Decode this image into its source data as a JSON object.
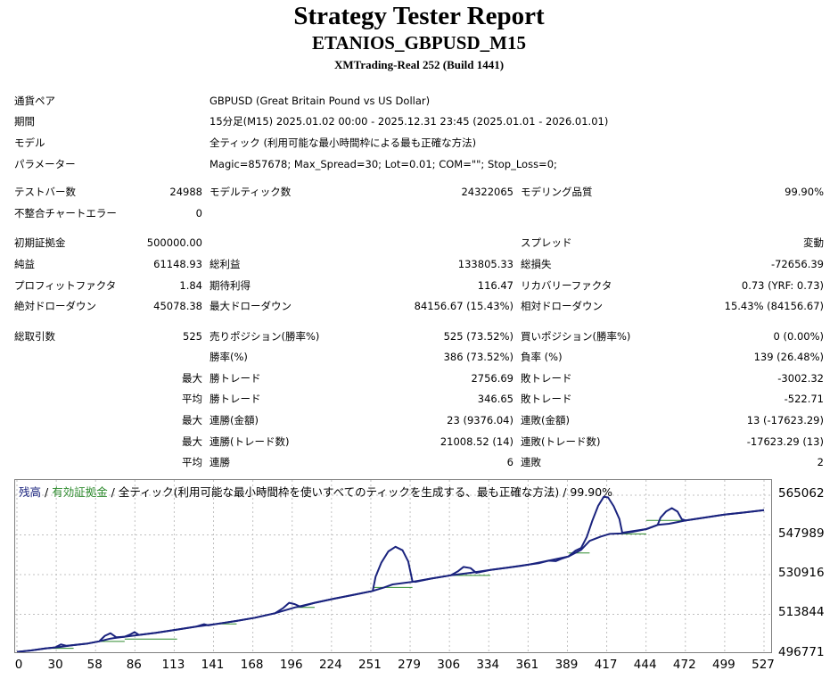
{
  "header": {
    "title": "Strategy Tester Report",
    "subtitle": "ETANIOS_GBPUSD_M15",
    "server": "XMTrading-Real 252 (Build 1441)"
  },
  "info": {
    "symbol_label": "通貨ペア",
    "symbol_value": "GBPUSD (Great Britain Pound vs US Dollar)",
    "period_label": "期間",
    "period_value": "15分足(M15) 2025.01.02 00:00 - 2025.12.31 23:45 (2025.01.01 - 2026.01.01)",
    "model_label": "モデル",
    "model_value": "全ティック (利用可能な最小時間枠による最も正確な方法)",
    "params_label": "パラメーター",
    "params_value": "Magic=857678; Max_Spread=30; Lot=0.01; COM=\"\"; Stop_Loss=0;"
  },
  "stats": {
    "bars_label": "テストバー数",
    "bars_value": "24988",
    "ticks_label": "モデルティック数",
    "ticks_value": "24322065",
    "quality_label": "モデリング品質",
    "quality_value": "99.90%",
    "mismatch_label": "不整合チャートエラー",
    "mismatch_value": "0",
    "deposit_label": "初期証拠金",
    "deposit_value": "500000.00",
    "spread_label": "スプレッド",
    "spread_value": "変動",
    "net_label": "純益",
    "net_value": "61148.93",
    "gross_profit_label": "総利益",
    "gross_profit_value": "133805.33",
    "gross_loss_label": "総損失",
    "gross_loss_value": "-72656.39",
    "pf_label": "プロフィットファクタ",
    "pf_value": "1.84",
    "payoff_label": "期待利得",
    "payoff_value": "116.47",
    "recovery_label": "リカバリーファクタ",
    "recovery_value": "0.73 (YRF: 0.73)",
    "abs_dd_label": "絶対ドローダウン",
    "abs_dd_value": "45078.38",
    "max_dd_label": "最大ドローダウン",
    "max_dd_value": "84156.67 (15.43%)",
    "rel_dd_label": "相対ドローダウン",
    "rel_dd_value": "15.43% (84156.67)",
    "trades_label": "総取引数",
    "trades_value": "525",
    "short_label": "売りポジション(勝率%)",
    "short_value": "525 (73.52%)",
    "long_label": "買いポジション(勝率%)",
    "long_value": "0 (0.00%)",
    "win_label": "勝率(%)",
    "win_value": "386 (73.52%)",
    "loss_label": "負率 (%)",
    "loss_value": "139 (26.48%)",
    "largest_prefix": "最大",
    "average_prefix": "平均",
    "largest_win_label": "勝トレード",
    "largest_win_value": "2756.69",
    "largest_loss_label": "敗トレード",
    "largest_loss_value": "-3002.32",
    "avg_win_label": "勝トレード",
    "avg_win_value": "346.65",
    "avg_loss_label": "敗トレード",
    "avg_loss_value": "-522.71",
    "max_consec_win_label": "連勝(金額)",
    "max_consec_win_value": "23 (9376.04)",
    "max_consec_loss_label": "連敗(金額)",
    "max_consec_loss_value": "13 (-17623.29)",
    "max_consec_profit_label": "連勝(トレード数)",
    "max_consec_profit_value": "21008.52 (14)",
    "max_consec_lossamt_label": "連敗(トレード数)",
    "max_consec_lossamt_value": "-17623.29 (13)",
    "avg_consec_win_label": "連勝",
    "avg_consec_win_value": "6",
    "avg_consec_loss_label": "連敗",
    "avg_consec_loss_value": "2"
  },
  "chart": {
    "legend_balance": "残高",
    "legend_sep1": " / ",
    "legend_equity": "有効証拠金",
    "legend_rest": " / 全ティック(利用可能な最小時間枠を使いすべてのティックを生成する、最も正確な方法) / 99.90%",
    "colors": {
      "balance": "#1a237e",
      "equity": "#2e8b2e",
      "grid": "#c0c0c0"
    }
  },
  "chart_data": {
    "type": "line",
    "yticks": [
      "565062",
      "547989",
      "530916",
      "513844",
      "496771"
    ],
    "xticks": [
      "0",
      "30",
      "58",
      "86",
      "113",
      "141",
      "168",
      "196",
      "224",
      "251",
      "279",
      "306",
      "334",
      "361",
      "389",
      "417",
      "444",
      "472",
      "499",
      "527"
    ],
    "ylim": [
      496771,
      565062
    ],
    "xlim": [
      0,
      527
    ],
    "series": [
      {
        "name": "残高",
        "points": [
          [
            0,
            497700
          ],
          [
            10,
            498300
          ],
          [
            20,
            499200
          ],
          [
            30,
            499800
          ],
          [
            40,
            500600
          ],
          [
            50,
            501300
          ],
          [
            58,
            502200
          ],
          [
            66,
            503400
          ],
          [
            76,
            504200
          ],
          [
            86,
            505000
          ],
          [
            98,
            505900
          ],
          [
            113,
            507300
          ],
          [
            126,
            508500
          ],
          [
            141,
            509700
          ],
          [
            155,
            511000
          ],
          [
            168,
            512400
          ],
          [
            182,
            514300
          ],
          [
            196,
            516800
          ],
          [
            210,
            518800
          ],
          [
            224,
            520600
          ],
          [
            238,
            522300
          ],
          [
            251,
            523900
          ],
          [
            259,
            525400
          ],
          [
            265,
            526700
          ],
          [
            279,
            527800
          ],
          [
            292,
            529200
          ],
          [
            306,
            530600
          ],
          [
            320,
            531700
          ],
          [
            334,
            532900
          ],
          [
            347,
            534000
          ],
          [
            361,
            535200
          ],
          [
            375,
            536900
          ],
          [
            389,
            538700
          ],
          [
            398,
            541600
          ],
          [
            404,
            545400
          ],
          [
            412,
            547300
          ],
          [
            418,
            548400
          ],
          [
            426,
            548600
          ],
          [
            434,
            549300
          ],
          [
            444,
            550500
          ],
          [
            452,
            552300
          ],
          [
            460,
            552800
          ],
          [
            472,
            554200
          ],
          [
            486,
            555500
          ],
          [
            499,
            556700
          ],
          [
            513,
            557600
          ],
          [
            527,
            558600
          ]
        ]
      },
      {
        "name": "有効証拠金",
        "points": [
          [
            0,
            497700
          ],
          [
            10,
            498300
          ],
          [
            20,
            499200
          ],
          [
            27,
            499600
          ],
          [
            31,
            500900
          ],
          [
            35,
            500300
          ],
          [
            40,
            500600
          ],
          [
            50,
            501300
          ],
          [
            58,
            502200
          ],
          [
            62,
            504600
          ],
          [
            66,
            505700
          ],
          [
            70,
            504000
          ],
          [
            76,
            504200
          ],
          [
            80,
            505200
          ],
          [
            83,
            506200
          ],
          [
            86,
            505000
          ],
          [
            98,
            505900
          ],
          [
            113,
            507300
          ],
          [
            126,
            508500
          ],
          [
            132,
            509600
          ],
          [
            135,
            509100
          ],
          [
            141,
            509700
          ],
          [
            155,
            511000
          ],
          [
            168,
            512400
          ],
          [
            182,
            514300
          ],
          [
            188,
            516600
          ],
          [
            192,
            518800
          ],
          [
            196,
            518200
          ],
          [
            200,
            517100
          ],
          [
            210,
            518800
          ],
          [
            224,
            520600
          ],
          [
            238,
            522300
          ],
          [
            251,
            523900
          ],
          [
            253,
            530000
          ],
          [
            257,
            536000
          ],
          [
            262,
            540900
          ],
          [
            267,
            542900
          ],
          [
            272,
            541400
          ],
          [
            276,
            536600
          ],
          [
            279,
            528100
          ],
          [
            281,
            527800
          ],
          [
            292,
            529200
          ],
          [
            306,
            530600
          ],
          [
            311,
            532300
          ],
          [
            315,
            534200
          ],
          [
            320,
            533700
          ],
          [
            324,
            531700
          ],
          [
            334,
            532900
          ],
          [
            347,
            534000
          ],
          [
            356,
            534700
          ],
          [
            361,
            535200
          ],
          [
            368,
            535800
          ],
          [
            375,
            536900
          ],
          [
            380,
            536700
          ],
          [
            384,
            537700
          ],
          [
            389,
            538700
          ],
          [
            394,
            541200
          ],
          [
            398,
            542400
          ],
          [
            402,
            547100
          ],
          [
            406,
            554300
          ],
          [
            410,
            560500
          ],
          [
            414,
            564400
          ],
          [
            417,
            564100
          ],
          [
            421,
            560300
          ],
          [
            425,
            554800
          ],
          [
            427,
            548900
          ],
          [
            431,
            549300
          ],
          [
            444,
            550500
          ],
          [
            452,
            552300
          ],
          [
            454,
            555400
          ],
          [
            458,
            558100
          ],
          [
            462,
            559500
          ],
          [
            466,
            558000
          ],
          [
            469,
            554700
          ],
          [
            472,
            554200
          ],
          [
            486,
            555500
          ],
          [
            499,
            556700
          ],
          [
            513,
            557600
          ],
          [
            527,
            558600
          ]
        ]
      }
    ],
    "flat_segments": [
      [
        20,
        40,
        499200
      ],
      [
        58,
        76,
        502200
      ],
      [
        76,
        113,
        503200
      ],
      [
        141,
        155,
        509700
      ],
      [
        196,
        210,
        516800
      ],
      [
        251,
        279,
        525400
      ],
      [
        306,
        334,
        530600
      ],
      [
        389,
        404,
        540200
      ],
      [
        417,
        444,
        548400
      ],
      [
        444,
        472,
        554200
      ]
    ]
  }
}
